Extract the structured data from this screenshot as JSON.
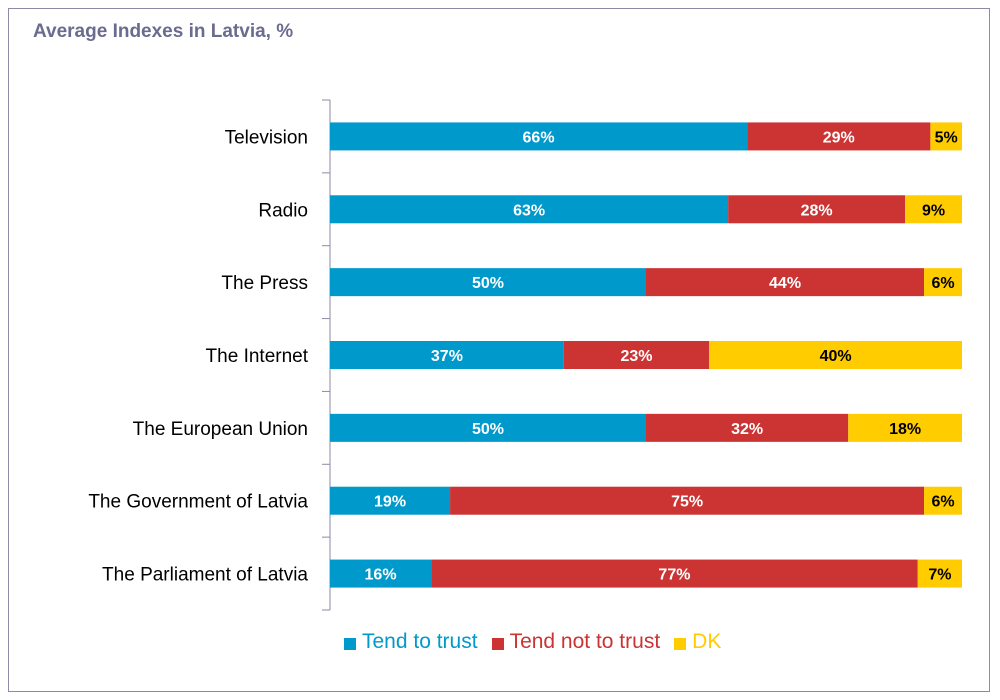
{
  "chart_data": {
    "type": "bar",
    "orientation": "horizontal",
    "stacked": true,
    "title": "Average Indexes in Latvia, %",
    "categories": [
      "Television",
      "Radio",
      "The Press",
      "The Internet",
      "The European Union",
      "The Government of Latvia",
      "The Parliament of Latvia"
    ],
    "series": [
      {
        "name": "Tend to trust",
        "color": "#0099cc",
        "label_color": "#ffffff",
        "values": [
          66,
          63,
          50,
          37,
          50,
          19,
          16
        ]
      },
      {
        "name": "Tend not to trust",
        "color": "#cc3333",
        "label_color": "#ffffff",
        "values": [
          29,
          28,
          44,
          23,
          32,
          75,
          77
        ]
      },
      {
        "name": "DK",
        "color": "#ffcc00",
        "label_color": "#000000",
        "values": [
          5,
          9,
          6,
          40,
          18,
          6,
          7
        ]
      }
    ],
    "value_suffix": "%",
    "xlim": [
      0,
      100
    ],
    "legend": "bottom",
    "grid": false
  }
}
